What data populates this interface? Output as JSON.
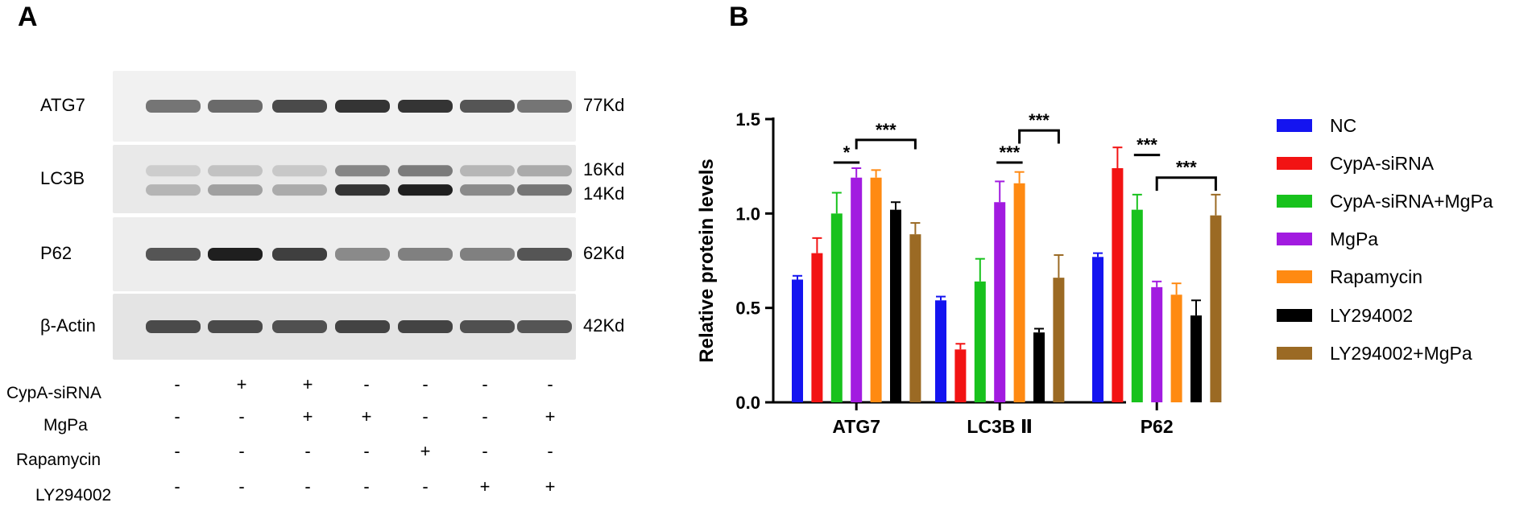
{
  "panel_a": {
    "letter": "A",
    "bands": [
      {
        "name": "ATG7",
        "kd": [
          "77Kd"
        ],
        "intensities": [
          0.55,
          0.6,
          0.75,
          0.85,
          0.85,
          0.7,
          0.55
        ],
        "bg": "#f1f1f1"
      },
      {
        "name": "LC3B",
        "kd": [
          "16Kd",
          "14Kd"
        ],
        "intensities": [
          0.25,
          0.35,
          0.3,
          0.85,
          0.95,
          0.45,
          0.55
        ],
        "bg": "#e9e9e9"
      },
      {
        "name": "P62",
        "kd": [
          "62Kd"
        ],
        "intensities": [
          0.7,
          0.95,
          0.8,
          0.45,
          0.5,
          0.5,
          0.7
        ],
        "bg": "#ededed"
      },
      {
        "name": "β-Actin",
        "kd": [
          "42Kd"
        ],
        "intensities": [
          0.75,
          0.75,
          0.72,
          0.78,
          0.78,
          0.72,
          0.7
        ],
        "bg": "#e4e4e4"
      }
    ],
    "conditions": [
      {
        "name": "CypA-siRNA",
        "marks": [
          "-",
          "+",
          "+",
          "-",
          "-",
          "-",
          "-"
        ]
      },
      {
        "name": "MgPa",
        "marks": [
          "-",
          "-",
          "+",
          "+",
          "-",
          "-",
          "+"
        ]
      },
      {
        "name": "Rapamycin",
        "marks": [
          "-",
          "-",
          "-",
          "-",
          "+",
          "-",
          "-"
        ]
      },
      {
        "name": "LY294002",
        "marks": [
          "-",
          "-",
          "-",
          "-",
          "-",
          "+",
          "+"
        ]
      }
    ]
  },
  "panel_b": {
    "letter": "B"
  },
  "chart_data": {
    "type": "bar",
    "categories": [
      "ATG7",
      "LC3B Ⅱ",
      "P62"
    ],
    "ylabel": "Relative protein levels",
    "ylim": [
      0,
      1.5
    ],
    "yticks": [
      "0.0",
      "0.5",
      "1.0",
      "1.5"
    ],
    "series": [
      {
        "name": "NC",
        "color": "#1414f0",
        "values": [
          0.65,
          0.54,
          0.77
        ],
        "errors": [
          0.02,
          0.02,
          0.02
        ]
      },
      {
        "name": "CypA-siRNA",
        "color": "#f21313",
        "values": [
          0.79,
          0.28,
          1.24
        ],
        "errors": [
          0.08,
          0.03,
          0.11
        ]
      },
      {
        "name": "CypA-siRNA+MgPa",
        "color": "#18c21d",
        "values": [
          1.0,
          0.64,
          1.02
        ],
        "errors": [
          0.11,
          0.12,
          0.08
        ]
      },
      {
        "name": "MgPa",
        "color": "#a21be0",
        "values": [
          1.19,
          1.06,
          0.61
        ],
        "errors": [
          0.05,
          0.11,
          0.03
        ]
      },
      {
        "name": "Rapamycin",
        "color": "#ff8a12",
        "values": [
          1.19,
          1.16,
          0.57
        ],
        "errors": [
          0.04,
          0.06,
          0.06
        ]
      },
      {
        "name": "LY294002",
        "color": "#000000",
        "values": [
          1.02,
          0.37,
          0.46
        ],
        "errors": [
          0.04,
          0.02,
          0.08
        ]
      },
      {
        "name": "LY294002+MgPa",
        "color": "#9b6a24",
        "values": [
          0.89,
          0.66,
          0.99
        ],
        "errors": [
          0.06,
          0.12,
          0.11
        ]
      }
    ],
    "annotations": [
      {
        "category": 0,
        "type": "line",
        "from": 2,
        "to": 3,
        "y": 1.27,
        "label": "*"
      },
      {
        "category": 0,
        "type": "bracket",
        "from": 3,
        "to": 6,
        "y": 1.39,
        "drop": 0.05,
        "label": "***"
      },
      {
        "category": 1,
        "type": "line",
        "from": 3,
        "to": 4,
        "y": 1.27,
        "label": "***"
      },
      {
        "category": 1,
        "type": "bracket",
        "from": 4,
        "to": 6,
        "y": 1.44,
        "drop": 0.07,
        "label": "***"
      },
      {
        "category": 2,
        "type": "line",
        "from": 2,
        "to": 3,
        "y": 1.31,
        "label": "***"
      },
      {
        "category": 2,
        "type": "bracket",
        "from": 3,
        "to": 6,
        "y": 1.19,
        "drop": 0.07,
        "label": "***"
      }
    ]
  }
}
